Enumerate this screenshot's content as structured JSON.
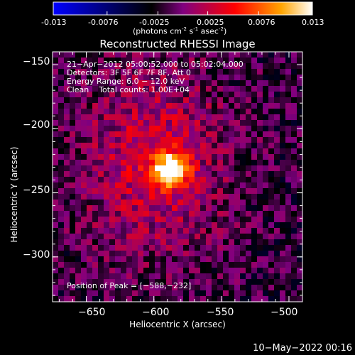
{
  "colorbar": {
    "ticks": [
      "-0.013",
      "-0.0076",
      "-0.0025",
      "0.0025",
      "0.0076",
      "0.013"
    ],
    "units_prefix": "(photons cm",
    "units_exp1": "-2",
    "units_mid": " s",
    "units_exp2": "-1",
    "units_suffix": " asec",
    "units_exp3": "-2",
    "units_close": ")",
    "colors": [
      "#0000ff",
      "#000000",
      "#800080",
      "#ff0000",
      "#ffa500",
      "#ffffff"
    ]
  },
  "chart_data": {
    "type": "heatmap",
    "title": "Reconstructed RHESSI Image",
    "xlabel": "Heliocentric X (arcsec)",
    "ylabel": "Heliocentric Y (arcsec)",
    "xlim": [
      -675,
      -490
    ],
    "ylim": [
      -335,
      -140
    ],
    "x_ticks": [
      -650,
      -600,
      -550,
      -500
    ],
    "y_ticks": [
      -150,
      -200,
      -250,
      -300
    ],
    "x_tick_labels": [
      "−650",
      "−600",
      "−550",
      "−500"
    ],
    "y_tick_labels": [
      "−150",
      "−200",
      "−250",
      "−300"
    ],
    "value_range": [
      -0.013,
      0.013
    ],
    "peak": [
      -588,
      -232
    ],
    "annotations": {
      "time": "21−Apr−2012 05:00:52.000 to 05:02:04.000",
      "detectors": "Detectors: 3F 5F 6F 7F 8F, Att 0",
      "energy": "Energy Range: 6.0 − 12.0 keV",
      "clean": "Clean    Total counts: 1.00E+04",
      "peak_label": "Position of Peak = [−588,−232]"
    }
  },
  "footer": {
    "date": "10−May−2022 00:16"
  }
}
